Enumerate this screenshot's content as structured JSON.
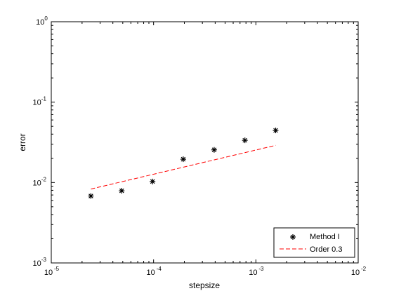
{
  "chart_data": {
    "type": "scatter",
    "xscale": "log",
    "yscale": "log",
    "xlim": [
      1e-05,
      0.01
    ],
    "ylim": [
      0.001,
      1
    ],
    "xlabel": "stepsize",
    "ylabel": "error",
    "grid": false,
    "legend_position": "bottom-right",
    "x_ticks": [
      {
        "base": "10",
        "exp": "-5",
        "value": 1e-05
      },
      {
        "base": "10",
        "exp": "-4",
        "value": 0.0001
      },
      {
        "base": "10",
        "exp": "-3",
        "value": 0.001
      },
      {
        "base": "10",
        "exp": "-2",
        "value": 0.01
      }
    ],
    "y_ticks": [
      {
        "base": "10",
        "exp": "-3",
        "value": 0.001
      },
      {
        "base": "10",
        "exp": "-2",
        "value": 0.01
      },
      {
        "base": "10",
        "exp": "-1",
        "value": 0.1
      },
      {
        "base": "10",
        "exp": "0",
        "value": 1
      }
    ],
    "series": [
      {
        "name": "Method I",
        "style": "markers",
        "marker": "asterisk",
        "color": "#000000",
        "x": [
          2.44e-05,
          4.88e-05,
          9.77e-05,
          0.000195,
          0.000391,
          0.000781,
          0.00156
        ],
        "y": [
          0.0068,
          0.0079,
          0.0103,
          0.0195,
          0.0255,
          0.0335,
          0.0445
        ]
      },
      {
        "name": "Order 0.3",
        "style": "dashed-line",
        "color": "#ff0000",
        "x": [
          2.44e-05,
          0.00156
        ],
        "y": [
          0.0083,
          0.029
        ]
      }
    ]
  }
}
